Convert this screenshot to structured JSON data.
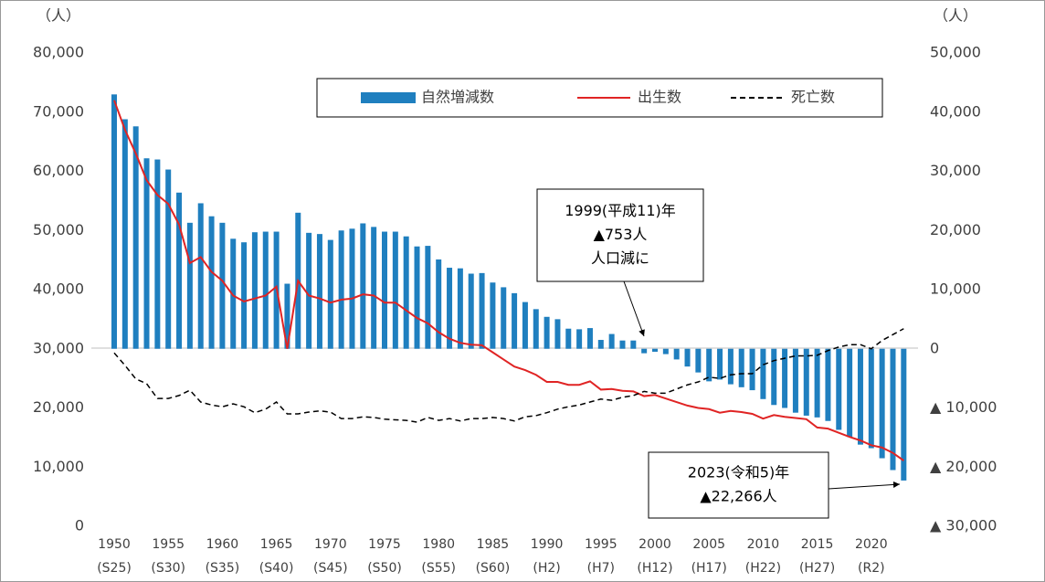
{
  "chart_data": {
    "type": "bar",
    "ylabel": "（人）",
    "y2label": "（人）",
    "categories": [
      "1950",
      null,
      null,
      null,
      null,
      "1955",
      null,
      null,
      null,
      null,
      "1960",
      null,
      null,
      null,
      null,
      "1965",
      null,
      null,
      null,
      null,
      "1970",
      null,
      null,
      null,
      null,
      "1975",
      null,
      null,
      null,
      null,
      "1980",
      null,
      null,
      null,
      null,
      "1985",
      null,
      null,
      null,
      null,
      "1990",
      null,
      null,
      null,
      null,
      "1995",
      null,
      null,
      null,
      null,
      "2000",
      null,
      null,
      null,
      null,
      "2005",
      null,
      null,
      null,
      null,
      "2010",
      null,
      null,
      null,
      null,
      "2015",
      null,
      null,
      null,
      null,
      "2020",
      null,
      null,
      null
    ],
    "category_sublabels": [
      "(S25)",
      null,
      null,
      null,
      null,
      "(S30)",
      null,
      null,
      null,
      null,
      "(S35)",
      null,
      null,
      null,
      null,
      "(S40)",
      null,
      null,
      null,
      null,
      "(S45)",
      null,
      null,
      null,
      null,
      "(S50)",
      null,
      null,
      null,
      null,
      "(S55)",
      null,
      null,
      null,
      null,
      "(S60)",
      null,
      null,
      null,
      null,
      "(H2)",
      null,
      null,
      null,
      null,
      "(H7)",
      null,
      null,
      null,
      null,
      "(H12)",
      null,
      null,
      null,
      null,
      "(H17)",
      null,
      null,
      null,
      null,
      "(H22)",
      null,
      null,
      null,
      null,
      "(H27)",
      null,
      null,
      null,
      null,
      "(R2)",
      null,
      null,
      null
    ],
    "ylim": [
      0,
      80000
    ],
    "yticks": [
      0,
      {
        "value": 10000,
        "label": "10,000"
      },
      {
        "value": 20000,
        "label": "20,000"
      },
      {
        "value": 30000,
        "label": "30,000"
      },
      {
        "value": 40000,
        "label": "40,000"
      },
      {
        "value": 50000,
        "label": "50,000"
      },
      {
        "value": 60000,
        "label": "60,000"
      },
      {
        "value": 70000,
        "label": "70,000"
      },
      {
        "value": 80000,
        "label": "80,000"
      }
    ],
    "y2lim": [
      -30000,
      50000
    ],
    "y2ticks": [
      {
        "value": -30000,
        "label": "▲ 30,000"
      },
      {
        "value": -20000,
        "label": "▲ 20,000"
      },
      {
        "value": -10000,
        "label": "▲ 10,000"
      },
      0,
      {
        "value": 10000,
        "label": "10,000"
      },
      {
        "value": 20000,
        "label": "20,000"
      },
      {
        "value": 30000,
        "label": "30,000"
      },
      {
        "value": 40000,
        "label": "40,000"
      },
      {
        "value": 50000,
        "label": "50,000"
      }
    ],
    "series": [
      {
        "name": "自然増減数",
        "color": "#1f7fbf",
        "axis": "y2",
        "values": [
          43000,
          38800,
          37600,
          32200,
          32000,
          30300,
          26400,
          21300,
          24600,
          22400,
          21300,
          18600,
          18000,
          19700,
          19800,
          19800,
          11000,
          23000,
          19600,
          19400,
          18400,
          20000,
          20300,
          21200,
          20600,
          19800,
          19800,
          19000,
          17300,
          17400,
          15100,
          13700,
          13600,
          12700,
          12800,
          11200,
          10400,
          9400,
          7900,
          6700,
          5400,
          5000,
          3400,
          3300,
          3500,
          1500,
          2500,
          1400,
          1400,
          -753,
          -500,
          -900,
          -1800,
          -3000,
          -4000,
          -5500,
          -5200,
          -6000,
          -6500,
          -7000,
          -8500,
          -9500,
          -10000,
          -10800,
          -11300,
          -11600,
          -12200,
          -13700,
          -14900,
          -16200,
          -16800,
          -18500,
          -20500,
          -22266
        ]
      },
      {
        "name": "出生数",
        "type": "line",
        "color": "#e02424",
        "values": [
          72000,
          67000,
          63000,
          58500,
          56000,
          54500,
          51000,
          44500,
          45500,
          43000,
          41500,
          39000,
          38000,
          38500,
          39000,
          40500,
          30000,
          41500,
          39000,
          38500,
          37800,
          38300,
          38500,
          39200,
          39000,
          37800,
          37800,
          36500,
          35200,
          34300,
          32800,
          31700,
          31000,
          30700,
          30600,
          29400,
          28200,
          27000,
          26400,
          25600,
          24400,
          24400,
          23900,
          23900,
          24500,
          23100,
          23200,
          22900,
          22800,
          22000,
          22200,
          21600,
          21000,
          20400,
          20000,
          19800,
          19200,
          19500,
          19300,
          19000,
          18200,
          18800,
          18500,
          18300,
          18100,
          16700,
          16500,
          15800,
          15100,
          14500,
          13700,
          13300,
          12400,
          11100
        ]
      },
      {
        "name": "死亡数",
        "type": "line",
        "color": "#000000",
        "line_style": "dashed",
        "values": [
          29300,
          27200,
          24900,
          24100,
          21600,
          21600,
          22100,
          23000,
          21000,
          20500,
          20200,
          20700,
          20200,
          19200,
          19800,
          21000,
          19000,
          19000,
          19300,
          19500,
          19300,
          18200,
          18200,
          18500,
          18400,
          18100,
          18000,
          17900,
          17600,
          18400,
          17900,
          18200,
          17800,
          18200,
          18200,
          18400,
          18200,
          17800,
          18500,
          18700,
          19200,
          19800,
          20200,
          20500,
          21000,
          21500,
          21300,
          21800,
          22100,
          22800,
          22500,
          22500,
          23200,
          23900,
          24400,
          25200,
          25000,
          25600,
          25800,
          25800,
          27300,
          28000,
          28400,
          28800,
          28800,
          28900,
          29700,
          30300,
          30700,
          30700,
          30000,
          31400,
          32400,
          33400
        ]
      }
    ],
    "annotations": [
      {
        "lines": [
          "1999(平成11)年",
          "▲753人",
          "人口減に"
        ]
      },
      {
        "lines": [
          "2023(令和5)年",
          "▲22,266人"
        ]
      }
    ]
  }
}
